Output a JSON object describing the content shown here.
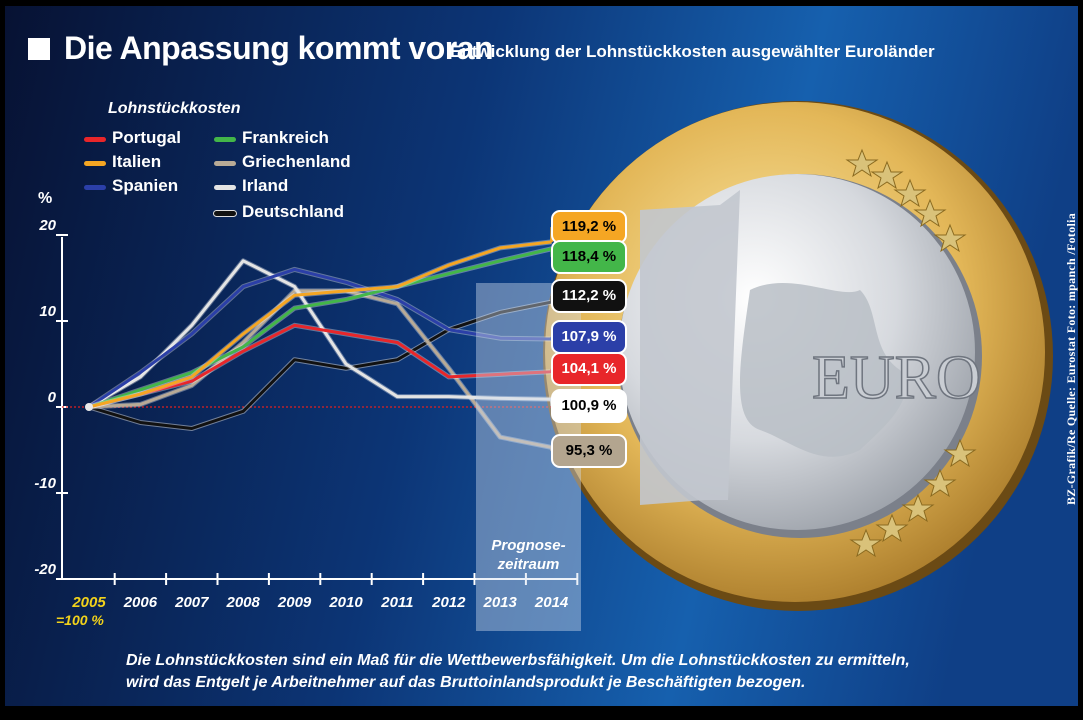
{
  "header": {
    "title": "Die Anpassung kommt voran",
    "subtitle": "Entwicklung der Lohnstückkosten ausgewählter Euroländer"
  },
  "legend": {
    "title": "Lohnstückkosten",
    "placement": "top-left"
  },
  "chart_data": {
    "type": "line",
    "ylabel": "%",
    "ylim": [
      -20,
      20
    ],
    "yticks": [
      "20",
      "10",
      "0",
      "-10",
      "-20"
    ],
    "x": [
      "2005",
      "2006",
      "2007",
      "2008",
      "2009",
      "2010",
      "2011",
      "2012",
      "2013",
      "2014"
    ],
    "base_note": "=100 %",
    "forecast_label": [
      "Prognose-",
      "zeitraum"
    ],
    "forecast_range": [
      "2013",
      "2014"
    ],
    "zero_line_color": "#e02020",
    "series": [
      {
        "name": "Portugal",
        "color": "#e8262a",
        "values": [
          0,
          1.5,
          3,
          6.5,
          9.5,
          8.5,
          7.5,
          3.5,
          3.8,
          4.1
        ],
        "end_label": "104,1 %",
        "label_bg": "#e8262a",
        "label_fg": "#ffffff"
      },
      {
        "name": "Italien",
        "color": "#f5a623",
        "values": [
          0,
          1.5,
          3.5,
          8.5,
          13,
          13.5,
          14,
          16.5,
          18.5,
          19.2
        ],
        "end_label": "119,2 %",
        "label_bg": "#f5a623",
        "label_fg": "#000000"
      },
      {
        "name": "Spanien",
        "color": "#2b3fa8",
        "values": [
          0,
          4,
          8.5,
          14,
          16,
          14.5,
          12.5,
          9,
          8,
          7.9
        ],
        "end_label": "107,9 %",
        "label_bg": "#2b3fa8",
        "label_fg": "#ffffff"
      },
      {
        "name": "Frankreich",
        "color": "#43b649",
        "values": [
          0,
          2,
          4,
          7,
          11.5,
          12.5,
          14,
          15.5,
          17,
          18.4
        ],
        "end_label": "118,4 %",
        "label_bg": "#43b649",
        "label_fg": "#000000"
      },
      {
        "name": "Griechenland",
        "color": "#b8aa96",
        "values": [
          0,
          0.3,
          2.5,
          7.5,
          13.5,
          13.5,
          12,
          4.5,
          -3.5,
          -4.7
        ],
        "end_label": "95,3 %",
        "label_bg": "#b3a58f",
        "label_fg": "#000000"
      },
      {
        "name": "Irland",
        "color": "#e4e4e4",
        "values": [
          0,
          3.5,
          9.5,
          17,
          14,
          5,
          1.2,
          1.2,
          1,
          0.9
        ],
        "end_label": "100,9 %",
        "label_bg": "#ffffff",
        "label_fg": "#000000"
      },
      {
        "name": "Deutschland",
        "color": "#111111",
        "values": [
          0,
          -1.8,
          -2.5,
          -0.5,
          5.5,
          4.5,
          5.5,
          9,
          11,
          12.2
        ],
        "end_label": "112,2 %",
        "label_bg": "#111111",
        "label_fg": "#ffffff"
      }
    ]
  },
  "footer": {
    "line1": "Die Lohnstückkosten sind ein Maß für die Wettbewerbsfähigkeit. Um die Lohnstückkosten zu ermitteln,",
    "line2": "wird das Entgelt je Arbeitnehmer auf das Bruttoinlandsprodukt je Beschäftigten bezogen."
  },
  "credit": "BZ-Grafik/Re Quelle: Eurostat Foto: mpanch /Fotolia",
  "coin": {
    "numeral": "1",
    "word": "EURO"
  },
  "colors": {
    "background_top": "#0a1a45",
    "background_mid": "#114f9a",
    "base_year": "#f2d21b"
  }
}
